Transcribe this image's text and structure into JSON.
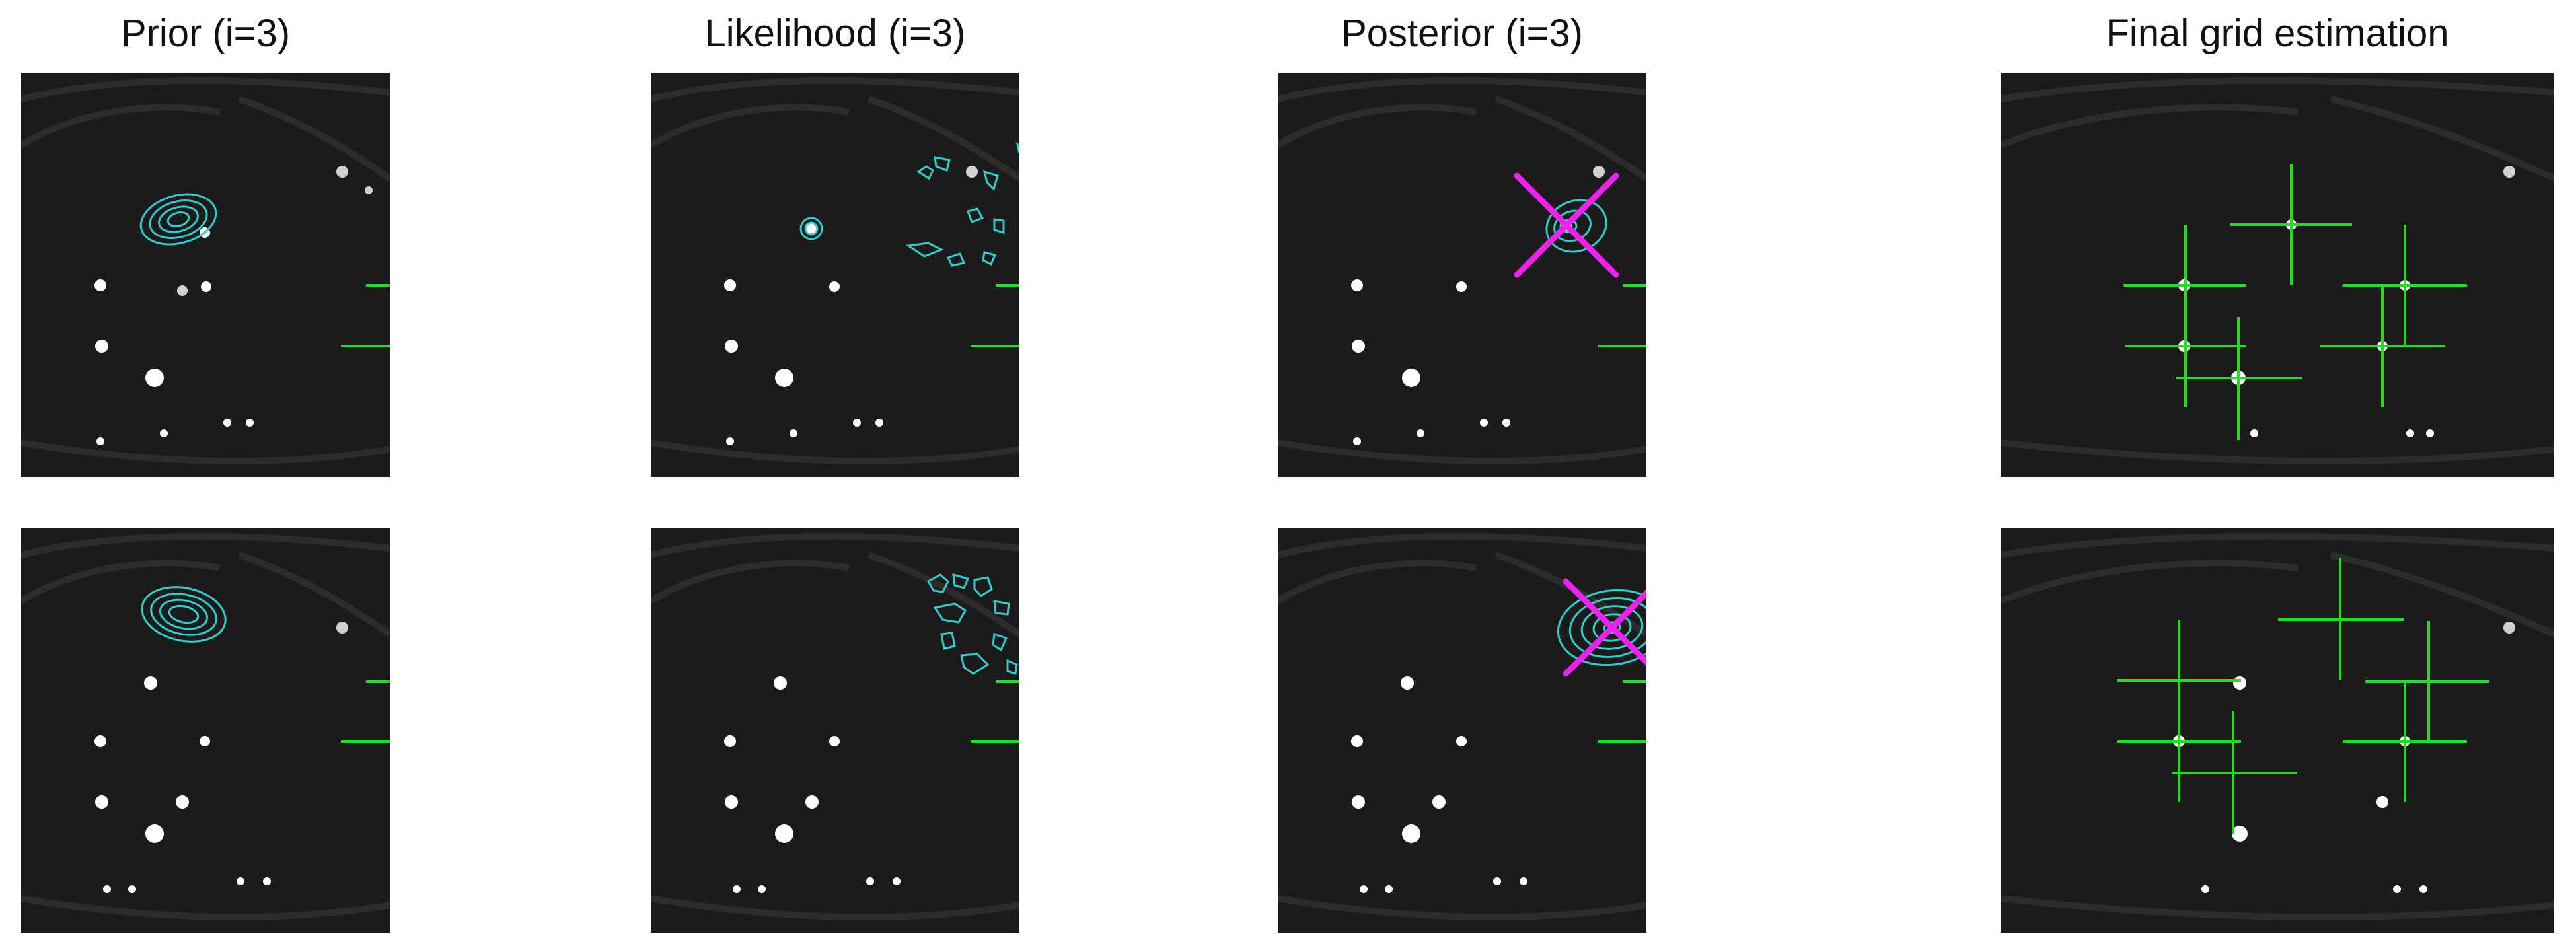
{
  "titles": {
    "prior": "Prior (i=3)",
    "likelihood": "Likelihood (i=3)",
    "posterior": "Posterior (i=3)",
    "final": "Final grid estimation"
  },
  "colors": {
    "background": "#ffffff",
    "image_dark": "#1b1b1b",
    "grid_cross": "#22dd22",
    "contour": "#33cccc",
    "posterior_x": "#ee22ee",
    "spot": "#ffffff"
  },
  "panels": [
    {
      "row": "top",
      "column": "prior",
      "image": "grayscale retinal scan",
      "overlays": [
        "gaussian-contours",
        "grid-crosses"
      ]
    },
    {
      "row": "top",
      "column": "likelihood",
      "image": "grayscale retinal scan",
      "overlays": [
        "likelihood-contours",
        "grid-crosses"
      ]
    },
    {
      "row": "top",
      "column": "posterior",
      "image": "grayscale retinal scan",
      "overlays": [
        "gaussian-contours",
        "posterior-x",
        "grid-crosses"
      ]
    },
    {
      "row": "top",
      "column": "final",
      "image": "grayscale retinal scan",
      "overlays": [
        "grid-crosses"
      ]
    },
    {
      "row": "bottom",
      "column": "prior",
      "image": "grayscale retinal scan",
      "overlays": [
        "gaussian-contours",
        "grid-crosses"
      ]
    },
    {
      "row": "bottom",
      "column": "likelihood",
      "image": "grayscale retinal scan",
      "overlays": [
        "likelihood-contours",
        "grid-crosses"
      ]
    },
    {
      "row": "bottom",
      "column": "posterior",
      "image": "grayscale retinal scan",
      "overlays": [
        "gaussian-contours",
        "posterior-x",
        "grid-crosses"
      ]
    },
    {
      "row": "bottom",
      "column": "final",
      "image": "grayscale retinal scan",
      "overlays": [
        "grid-crosses"
      ]
    }
  ]
}
